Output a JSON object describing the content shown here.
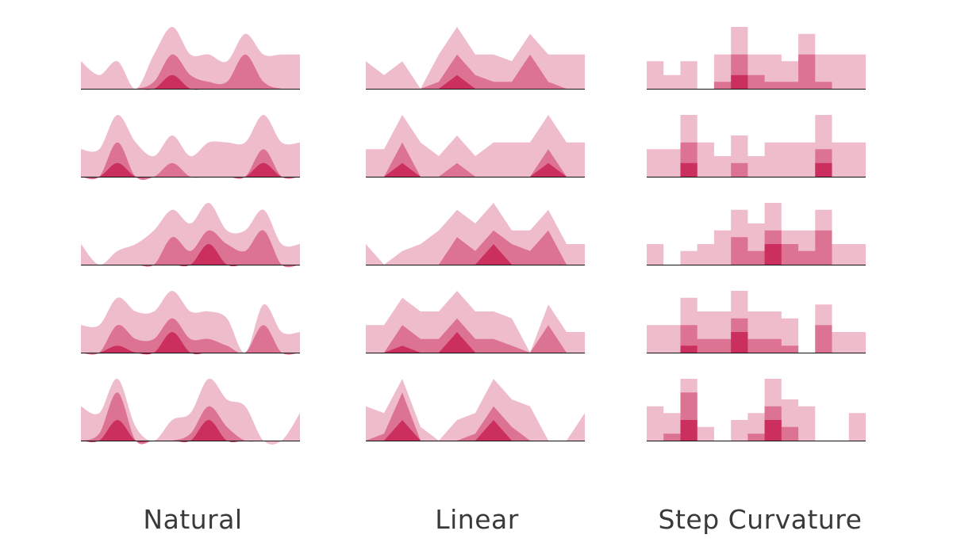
{
  "colors": {
    "light": "#efbccb",
    "medium": "#dd7393",
    "dark": "#cb2f5e",
    "baseline": "#111111"
  },
  "labels": {
    "natural": "Natural",
    "linear": "Linear",
    "step": "Step Curvature"
  },
  "chart_data": [
    {
      "type": "area",
      "interpolation": "natural",
      "title": "Natural",
      "rows": [
        {
          "light": [
            4,
            2,
            4,
            0,
            5,
            9,
            5,
            5,
            4,
            8,
            5,
            5,
            5
          ],
          "medium": [
            0,
            0,
            0,
            0,
            1,
            5,
            2,
            1,
            1,
            5,
            1,
            0,
            0
          ],
          "dark": [
            0,
            0,
            0,
            0,
            0,
            2,
            0,
            0,
            0,
            0,
            0,
            0,
            0
          ]
        },
        {
          "light": [
            4,
            4,
            9,
            5,
            3,
            6,
            3,
            5,
            5,
            5,
            9,
            5,
            5
          ],
          "medium": [
            0,
            0,
            5,
            0,
            0,
            2,
            0,
            0,
            0,
            0,
            4,
            0,
            0
          ],
          "dark": [
            0,
            0,
            2,
            0,
            0,
            0,
            0,
            0,
            0,
            0,
            2,
            0,
            0
          ]
        },
        {
          "light": [
            3,
            0,
            2,
            3,
            5,
            8,
            6,
            9,
            5,
            5,
            8,
            3,
            3
          ],
          "medium": [
            0,
            0,
            0,
            0,
            0,
            4,
            2,
            5,
            3,
            2,
            5,
            0,
            0
          ],
          "dark": [
            0,
            0,
            0,
            0,
            0,
            0,
            0,
            3,
            0,
            0,
            0,
            0,
            0
          ]
        },
        {
          "light": [
            4,
            4,
            8,
            6,
            6,
            9,
            6,
            6,
            5,
            0,
            7,
            3,
            3
          ],
          "medium": [
            0,
            0,
            4,
            2,
            2,
            5,
            2,
            2,
            1,
            0,
            4,
            0,
            0
          ],
          "dark": [
            0,
            0,
            1,
            0,
            0,
            3,
            0,
            0,
            0,
            0,
            0,
            0,
            0
          ]
        },
        {
          "light": [
            5,
            4,
            9,
            2,
            0,
            3,
            4,
            9,
            6,
            5,
            0,
            0,
            4
          ],
          "medium": [
            0,
            1,
            7,
            0,
            0,
            0,
            1,
            5,
            2,
            0,
            0,
            0,
            0
          ],
          "dark": [
            0,
            0,
            3,
            0,
            0,
            0,
            0,
            3,
            0,
            0,
            0,
            0,
            0
          ]
        }
      ]
    },
    {
      "type": "area",
      "interpolation": "linear",
      "title": "Linear",
      "rows": [
        {
          "light": [
            4,
            2,
            4,
            0,
            5,
            9,
            5,
            5,
            4,
            8,
            5,
            5,
            5
          ],
          "medium": [
            0,
            0,
            0,
            0,
            1,
            5,
            2,
            1,
            1,
            5,
            1,
            0,
            0
          ],
          "dark": [
            0,
            0,
            0,
            0,
            0,
            2,
            0,
            0,
            0,
            0,
            0,
            0,
            0
          ]
        },
        {
          "light": [
            4,
            4,
            9,
            5,
            3,
            6,
            3,
            5,
            5,
            5,
            9,
            5,
            5
          ],
          "medium": [
            0,
            0,
            5,
            0,
            0,
            2,
            0,
            0,
            0,
            0,
            4,
            0,
            0
          ],
          "dark": [
            0,
            0,
            2,
            0,
            0,
            0,
            0,
            0,
            0,
            0,
            2,
            0,
            0
          ]
        },
        {
          "light": [
            3,
            0,
            2,
            3,
            5,
            8,
            6,
            9,
            5,
            5,
            8,
            3,
            3
          ],
          "medium": [
            0,
            0,
            0,
            0,
            0,
            4,
            2,
            5,
            3,
            2,
            5,
            0,
            0
          ],
          "dark": [
            0,
            0,
            0,
            0,
            0,
            0,
            0,
            3,
            0,
            0,
            0,
            0,
            0
          ]
        },
        {
          "light": [
            4,
            4,
            8,
            6,
            6,
            9,
            6,
            6,
            5,
            0,
            7,
            3,
            3
          ],
          "medium": [
            0,
            0,
            4,
            2,
            2,
            5,
            2,
            2,
            1,
            0,
            4,
            0,
            0
          ],
          "dark": [
            0,
            0,
            1,
            0,
            0,
            3,
            0,
            0,
            0,
            0,
            0,
            0,
            0
          ]
        },
        {
          "light": [
            5,
            4,
            9,
            2,
            0,
            3,
            4,
            9,
            6,
            5,
            0,
            0,
            4
          ],
          "medium": [
            0,
            1,
            7,
            0,
            0,
            0,
            1,
            5,
            2,
            0,
            0,
            0,
            0
          ],
          "dark": [
            0,
            0,
            3,
            0,
            0,
            0,
            0,
            3,
            0,
            0,
            0,
            0,
            0
          ]
        }
      ]
    },
    {
      "type": "area",
      "interpolation": "step",
      "title": "Step Curvature",
      "rows": [
        {
          "light": [
            4,
            2,
            4,
            0,
            5,
            9,
            5,
            5,
            4,
            8,
            5,
            5,
            5
          ],
          "medium": [
            0,
            0,
            0,
            0,
            1,
            5,
            2,
            1,
            1,
            5,
            1,
            0,
            0
          ],
          "dark": [
            0,
            0,
            0,
            0,
            0,
            2,
            0,
            0,
            0,
            0,
            0,
            0,
            0
          ]
        },
        {
          "light": [
            4,
            4,
            9,
            5,
            3,
            6,
            3,
            5,
            5,
            5,
            9,
            5,
            5
          ],
          "medium": [
            0,
            0,
            5,
            0,
            0,
            2,
            0,
            0,
            0,
            0,
            4,
            0,
            0
          ],
          "dark": [
            0,
            0,
            2,
            0,
            0,
            0,
            0,
            0,
            0,
            0,
            2,
            0,
            0
          ]
        },
        {
          "light": [
            3,
            0,
            2,
            3,
            5,
            8,
            6,
            9,
            5,
            5,
            8,
            3,
            3
          ],
          "medium": [
            0,
            0,
            0,
            0,
            0,
            4,
            2,
            5,
            3,
            2,
            5,
            0,
            0
          ],
          "dark": [
            0,
            0,
            0,
            0,
            0,
            0,
            0,
            3,
            0,
            0,
            0,
            0,
            0
          ]
        },
        {
          "light": [
            4,
            4,
            8,
            6,
            6,
            9,
            6,
            6,
            5,
            0,
            7,
            3,
            3
          ],
          "medium": [
            0,
            0,
            4,
            2,
            2,
            5,
            2,
            2,
            1,
            0,
            4,
            0,
            0
          ],
          "dark": [
            0,
            0,
            1,
            0,
            0,
            3,
            0,
            0,
            0,
            0,
            0,
            0,
            0
          ]
        },
        {
          "light": [
            5,
            4,
            9,
            2,
            0,
            3,
            4,
            9,
            6,
            5,
            0,
            0,
            4
          ],
          "medium": [
            0,
            1,
            7,
            0,
            0,
            0,
            1,
            5,
            2,
            0,
            0,
            0,
            0
          ],
          "dark": [
            0,
            0,
            3,
            0,
            0,
            0,
            0,
            3,
            0,
            0,
            0,
            0,
            0
          ]
        }
      ]
    }
  ]
}
